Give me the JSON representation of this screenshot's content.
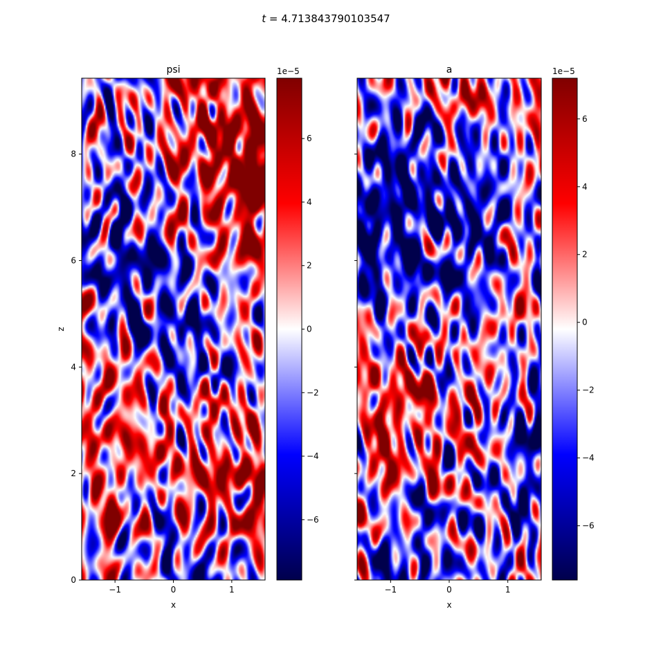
{
  "figure": {
    "suptitle_prefix": "t",
    "suptitle_value": "4.713843790103547"
  },
  "chart_data": [
    {
      "type": "heatmap",
      "title": "psi",
      "xlabel": "x",
      "ylabel": "z",
      "xlim": [
        -1.5708,
        1.5708
      ],
      "ylim": [
        0,
        9.4248
      ],
      "xticks": [
        -1,
        0,
        1
      ],
      "yticks": [
        0,
        2,
        4,
        6,
        8
      ],
      "colormap": "seismic",
      "colormap_stops": [
        "#00004c",
        "#0000ff",
        "#ffffff",
        "#ff0000",
        "#800000"
      ],
      "color_range": [
        -7.9e-05,
        7.9e-05
      ],
      "colorbar": {
        "scale_label": "1e−5",
        "ticks": [
          -6,
          -4,
          -2,
          0,
          2,
          4,
          6
        ],
        "range": [
          -7.9,
          7.9
        ]
      }
    },
    {
      "type": "heatmap",
      "title": "a",
      "xlabel": "x",
      "ylabel": "",
      "xlim": [
        -1.5708,
        1.5708
      ],
      "ylim": [
        0,
        9.4248
      ],
      "xticks": [
        -1,
        0,
        1
      ],
      "yticks": [
        0,
        2,
        4,
        6,
        8
      ],
      "yticklabels_visible": false,
      "colormap": "seismic",
      "colormap_stops": [
        "#00004c",
        "#0000ff",
        "#ffffff",
        "#ff0000",
        "#800000"
      ],
      "color_range": [
        -7.6e-05,
        7.2e-05
      ],
      "colorbar": {
        "scale_label": "1e−5",
        "ticks": [
          -6,
          -4,
          -2,
          0,
          2,
          4,
          6
        ],
        "range": [
          -7.6,
          7.2
        ]
      }
    }
  ]
}
